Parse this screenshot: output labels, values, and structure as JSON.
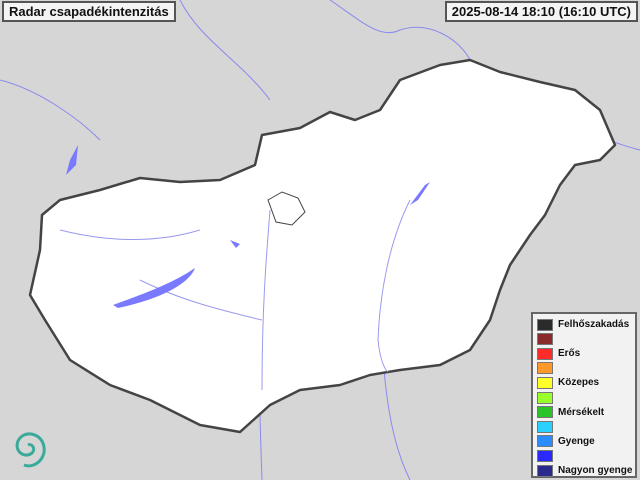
{
  "header": {
    "title": "Radar csapadékintenzitás",
    "timestamp": "2025-08-14 18:10 (16:10 UTC)"
  },
  "legend": [
    {
      "label": "Felhőszakadás",
      "color": "#2b2b2b"
    },
    {
      "label": "",
      "color": "#8b2a2a"
    },
    {
      "label": "Erős",
      "color": "#ff2a2a"
    },
    {
      "label": "",
      "color": "#ff9a2a"
    },
    {
      "label": "Közepes",
      "color": "#ffff2a"
    },
    {
      "label": "",
      "color": "#99ff2a"
    },
    {
      "label": "Mérsékelt",
      "color": "#2ac42a"
    },
    {
      "label": "",
      "color": "#2ad0ff"
    },
    {
      "label": "Gyenge",
      "color": "#2a8cff"
    },
    {
      "label": "",
      "color": "#2a2aff"
    },
    {
      "label": "Nagyon gyenge",
      "color": "#2a2a8c"
    }
  ],
  "colors": {
    "country": "#ffffff",
    "surroundings": "#d9d9d9",
    "water": "#7a7aff",
    "border": "#444444"
  },
  "logo": "swirl-logo"
}
